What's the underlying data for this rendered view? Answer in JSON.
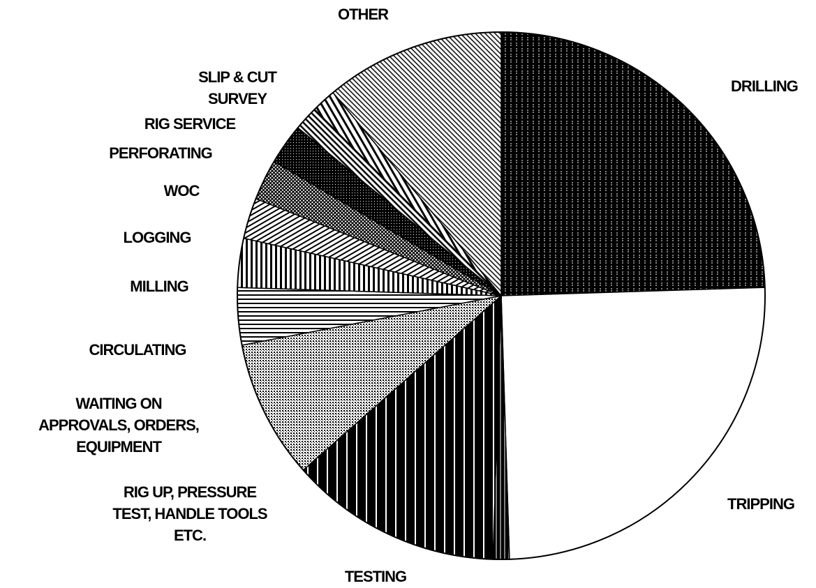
{
  "chart_data": {
    "type": "pie",
    "categories": [
      [
        "DRILLING"
      ],
      [
        "TRIPPING"
      ],
      [
        "TESTING"
      ],
      [
        "RIG UP, PRESSURE",
        "TEST, HANDLE TOOLS",
        "ETC."
      ],
      [
        "WAITING ON",
        "APPROVALS, ORDERS,",
        "EQUIPMENT"
      ],
      [
        "CIRCULATING"
      ],
      [
        "MILLING"
      ],
      [
        "LOGGING"
      ],
      [
        "WOC"
      ],
      [
        "PERFORATING"
      ],
      [
        "RIG SERVICE"
      ],
      [
        "SLIP & CUT",
        "SURVEY"
      ],
      [
        "OTHER"
      ]
    ],
    "values": [
      24.5,
      25,
      1,
      13,
      8.5,
      3.5,
      3,
      2.5,
      2.5,
      2.5,
      1.5,
      1.5,
      11
    ]
  }
}
